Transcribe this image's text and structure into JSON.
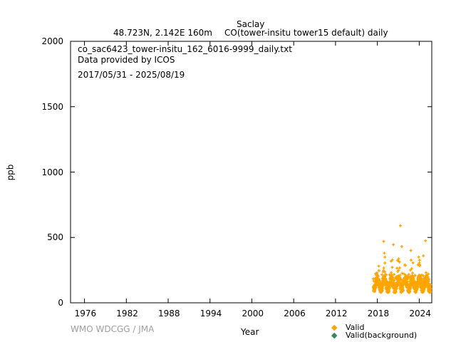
{
  "header": {
    "station": "Saclay",
    "location": "48.723N, 2.142E 160m",
    "species": "CO(tower-insitu tower15 default) daily"
  },
  "info": {
    "filename": "co_sac6423_tower-insitu_162_6016-9999_daily.txt",
    "provider": "Data provided by ICOS",
    "period": "2017/05/31 - 2025/08/19"
  },
  "watermark": "WMO WDCGG / JMA",
  "chart_data": {
    "type": "scatter",
    "xlabel": "Year",
    "ylabel": "ppb",
    "xlim": [
      1974,
      2025.8
    ],
    "ylim": [
      0,
      2000
    ],
    "x_ticks": [
      "1976",
      "1982",
      "1988",
      "1994",
      "2000",
      "2006",
      "2012",
      "2018",
      "2024"
    ],
    "y_ticks": [
      "0",
      "500",
      "1000",
      "1500",
      "2000"
    ],
    "grid": false,
    "legend_position": "bottom-right",
    "series": [
      {
        "name": "Valid",
        "color": "#FFA500",
        "marker": "plus",
        "x_range": [
          2017.41,
          2025.63
        ],
        "baseline_ppb": [
          80,
          230
        ],
        "notable_points": [
          {
            "x": 2021.3,
            "y": 590
          },
          {
            "x": 2018.9,
            "y": 470
          },
          {
            "x": 2024.9,
            "y": 475
          },
          {
            "x": 2020.3,
            "y": 445
          },
          {
            "x": 2021.5,
            "y": 430
          },
          {
            "x": 2019.0,
            "y": 380
          },
          {
            "x": 2022.8,
            "y": 400
          },
          {
            "x": 2024.6,
            "y": 360
          }
        ]
      },
      {
        "name": "Valid(background)",
        "color": "#2E8B57",
        "marker": "diamond",
        "points": []
      }
    ]
  }
}
